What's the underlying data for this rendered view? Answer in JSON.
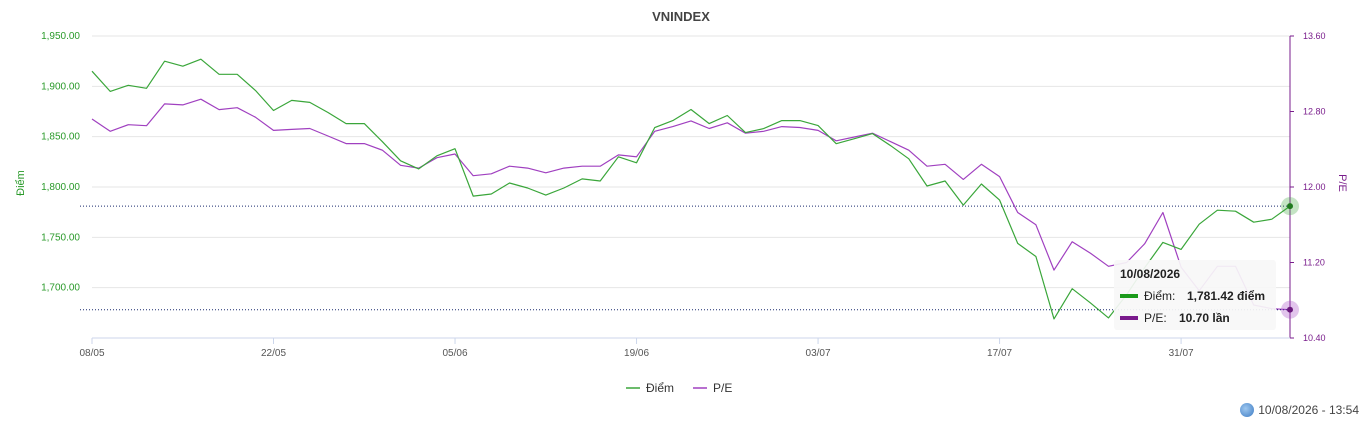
{
  "footer": {
    "timestamp": "10/08/2026 - 13:54",
    "icon": "globe-icon"
  },
  "chart_data": {
    "type": "line",
    "title": "VNINDEX",
    "ylabel_left": "Điểm",
    "ylabel_right": "P/E",
    "ylim_left": [
      1650,
      1950
    ],
    "ylim_right": [
      10.4,
      13.6
    ],
    "left_ticks": [
      "1,950.00",
      "1,900.00",
      "1,850.00",
      "1,800.00",
      "1,750.00",
      "1,700.00"
    ],
    "left_tick_values": [
      1950,
      1900,
      1850,
      1800,
      1750,
      1700
    ],
    "right_ticks": [
      "13.60",
      "12.80",
      "12.00",
      "11.20",
      "10.40"
    ],
    "right_tick_values": [
      13.6,
      12.8,
      12.0,
      11.2,
      10.4
    ],
    "x_ticks": [
      "08/05",
      "22/05",
      "05/06",
      "19/06",
      "03/07",
      "17/07",
      "31/07"
    ],
    "x_tick_index": [
      0,
      10,
      20,
      30,
      40,
      50,
      60
    ],
    "colors": {
      "diem": "#3aa63a",
      "pe": "#a040c0",
      "crosshair": "#1a2a6e",
      "tooltip_diem": "#1a9a1a",
      "tooltip_pe": "#7a1a8c"
    },
    "legend": {
      "placement": "bottom-center"
    },
    "grid": true,
    "series": [
      {
        "name": "Điểm",
        "axis": "left",
        "values": [
          1915,
          1895,
          1901,
          1898,
          1925,
          1920,
          1927,
          1912,
          1912,
          1896,
          1876,
          1886,
          1884,
          1874,
          1863,
          1863,
          1845,
          1826,
          1818,
          1831,
          1838,
          1791,
          1793,
          1804,
          1799,
          1792,
          1799,
          1808,
          1806,
          1830,
          1824,
          1859,
          1866,
          1877,
          1863,
          1871,
          1854,
          1858,
          1866,
          1866,
          1861,
          1843,
          1848,
          1853,
          1841,
          1828,
          1801,
          1806,
          1782,
          1803,
          1787,
          1744,
          1731,
          1669,
          1699,
          1685,
          1670,
          1693,
          1720,
          1745,
          1738,
          1763,
          1777,
          1776,
          1765,
          1768,
          1781
        ]
      },
      {
        "name": "P/E",
        "axis": "right",
        "values": [
          12.72,
          12.59,
          12.66,
          12.65,
          12.88,
          12.87,
          12.93,
          12.82,
          12.84,
          12.74,
          12.6,
          12.61,
          12.62,
          12.54,
          12.46,
          12.46,
          12.39,
          12.23,
          12.2,
          12.31,
          12.35,
          12.12,
          12.14,
          12.22,
          12.2,
          12.15,
          12.2,
          12.22,
          12.22,
          12.34,
          12.32,
          12.59,
          12.64,
          12.7,
          12.62,
          12.68,
          12.57,
          12.59,
          12.64,
          12.63,
          12.6,
          12.49,
          12.53,
          12.57,
          12.48,
          12.39,
          12.22,
          12.24,
          12.08,
          12.24,
          12.11,
          11.73,
          11.6,
          11.12,
          11.42,
          11.3,
          11.16,
          11.2,
          11.4,
          11.73,
          11.15,
          10.9,
          11.16,
          11.16,
          10.75,
          10.71,
          10.7
        ]
      }
    ],
    "tooltip": {
      "date": "10/08/2026",
      "rows": [
        {
          "label": "Điểm:",
          "value": "1,781.42 điểm"
        },
        {
          "label": "P/E:",
          "value": "10.70 lần"
        }
      ]
    }
  }
}
